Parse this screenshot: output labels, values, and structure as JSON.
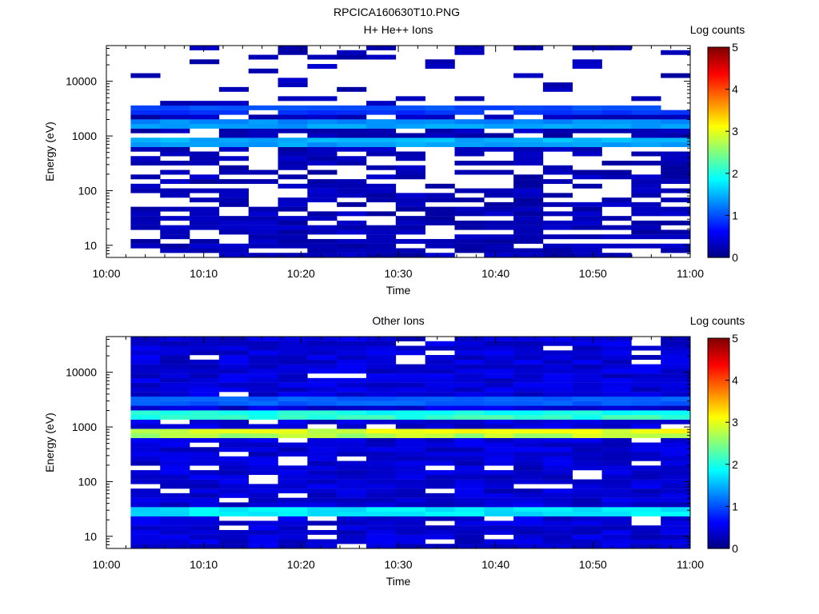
{
  "figure": {
    "title": "RPCICA160630T10.PNG"
  },
  "chart_data": [
    {
      "type": "heatmap",
      "title": "H+ He++ Ions",
      "xlabel": "Time",
      "ylabel": "Energy (eV)",
      "x_ticks": [
        "10:00",
        "10:10",
        "10:20",
        "10:30",
        "10:40",
        "10:50",
        "11:00"
      ],
      "xlim": [
        "10:00",
        "11:00"
      ],
      "y_scale": "log",
      "y_ticks": [
        10,
        100,
        1000,
        10000
      ],
      "ylim": [
        6,
        45000
      ],
      "data_time_range": [
        "10:02.5",
        "11:00"
      ],
      "colorbar": {
        "label": "Log counts",
        "range": [
          0,
          5
        ],
        "ticks": [
          0,
          1,
          2,
          3,
          4,
          5
        ]
      },
      "features": [
        {
          "energy": 800,
          "level": 1.7
        },
        {
          "energy": 1600,
          "level": 1.6
        },
        {
          "energy": 3200,
          "level": 1.1
        }
      ],
      "seed": 11
    },
    {
      "type": "heatmap",
      "title": "Other Ions",
      "xlabel": "Time",
      "ylabel": "Energy (eV)",
      "x_ticks": [
        "10:00",
        "10:10",
        "10:20",
        "10:30",
        "10:40",
        "10:50",
        "11:00"
      ],
      "xlim": [
        "10:00",
        "11:00"
      ],
      "y_scale": "log",
      "y_ticks": [
        10,
        100,
        1000,
        10000
      ],
      "ylim": [
        6,
        45000
      ],
      "data_time_range": [
        "10:02.5",
        "11:00"
      ],
      "colorbar": {
        "label": "Log counts",
        "range": [
          0,
          5
        ],
        "ticks": [
          0,
          1,
          2,
          3,
          4,
          5
        ]
      },
      "features": [
        {
          "energy": 800,
          "level": 3.4
        },
        {
          "energy": 1600,
          "level": 2.4
        },
        {
          "energy": 3000,
          "level": 1.3
        },
        {
          "energy": 28,
          "level": 2.1
        }
      ],
      "seed": 29
    }
  ]
}
